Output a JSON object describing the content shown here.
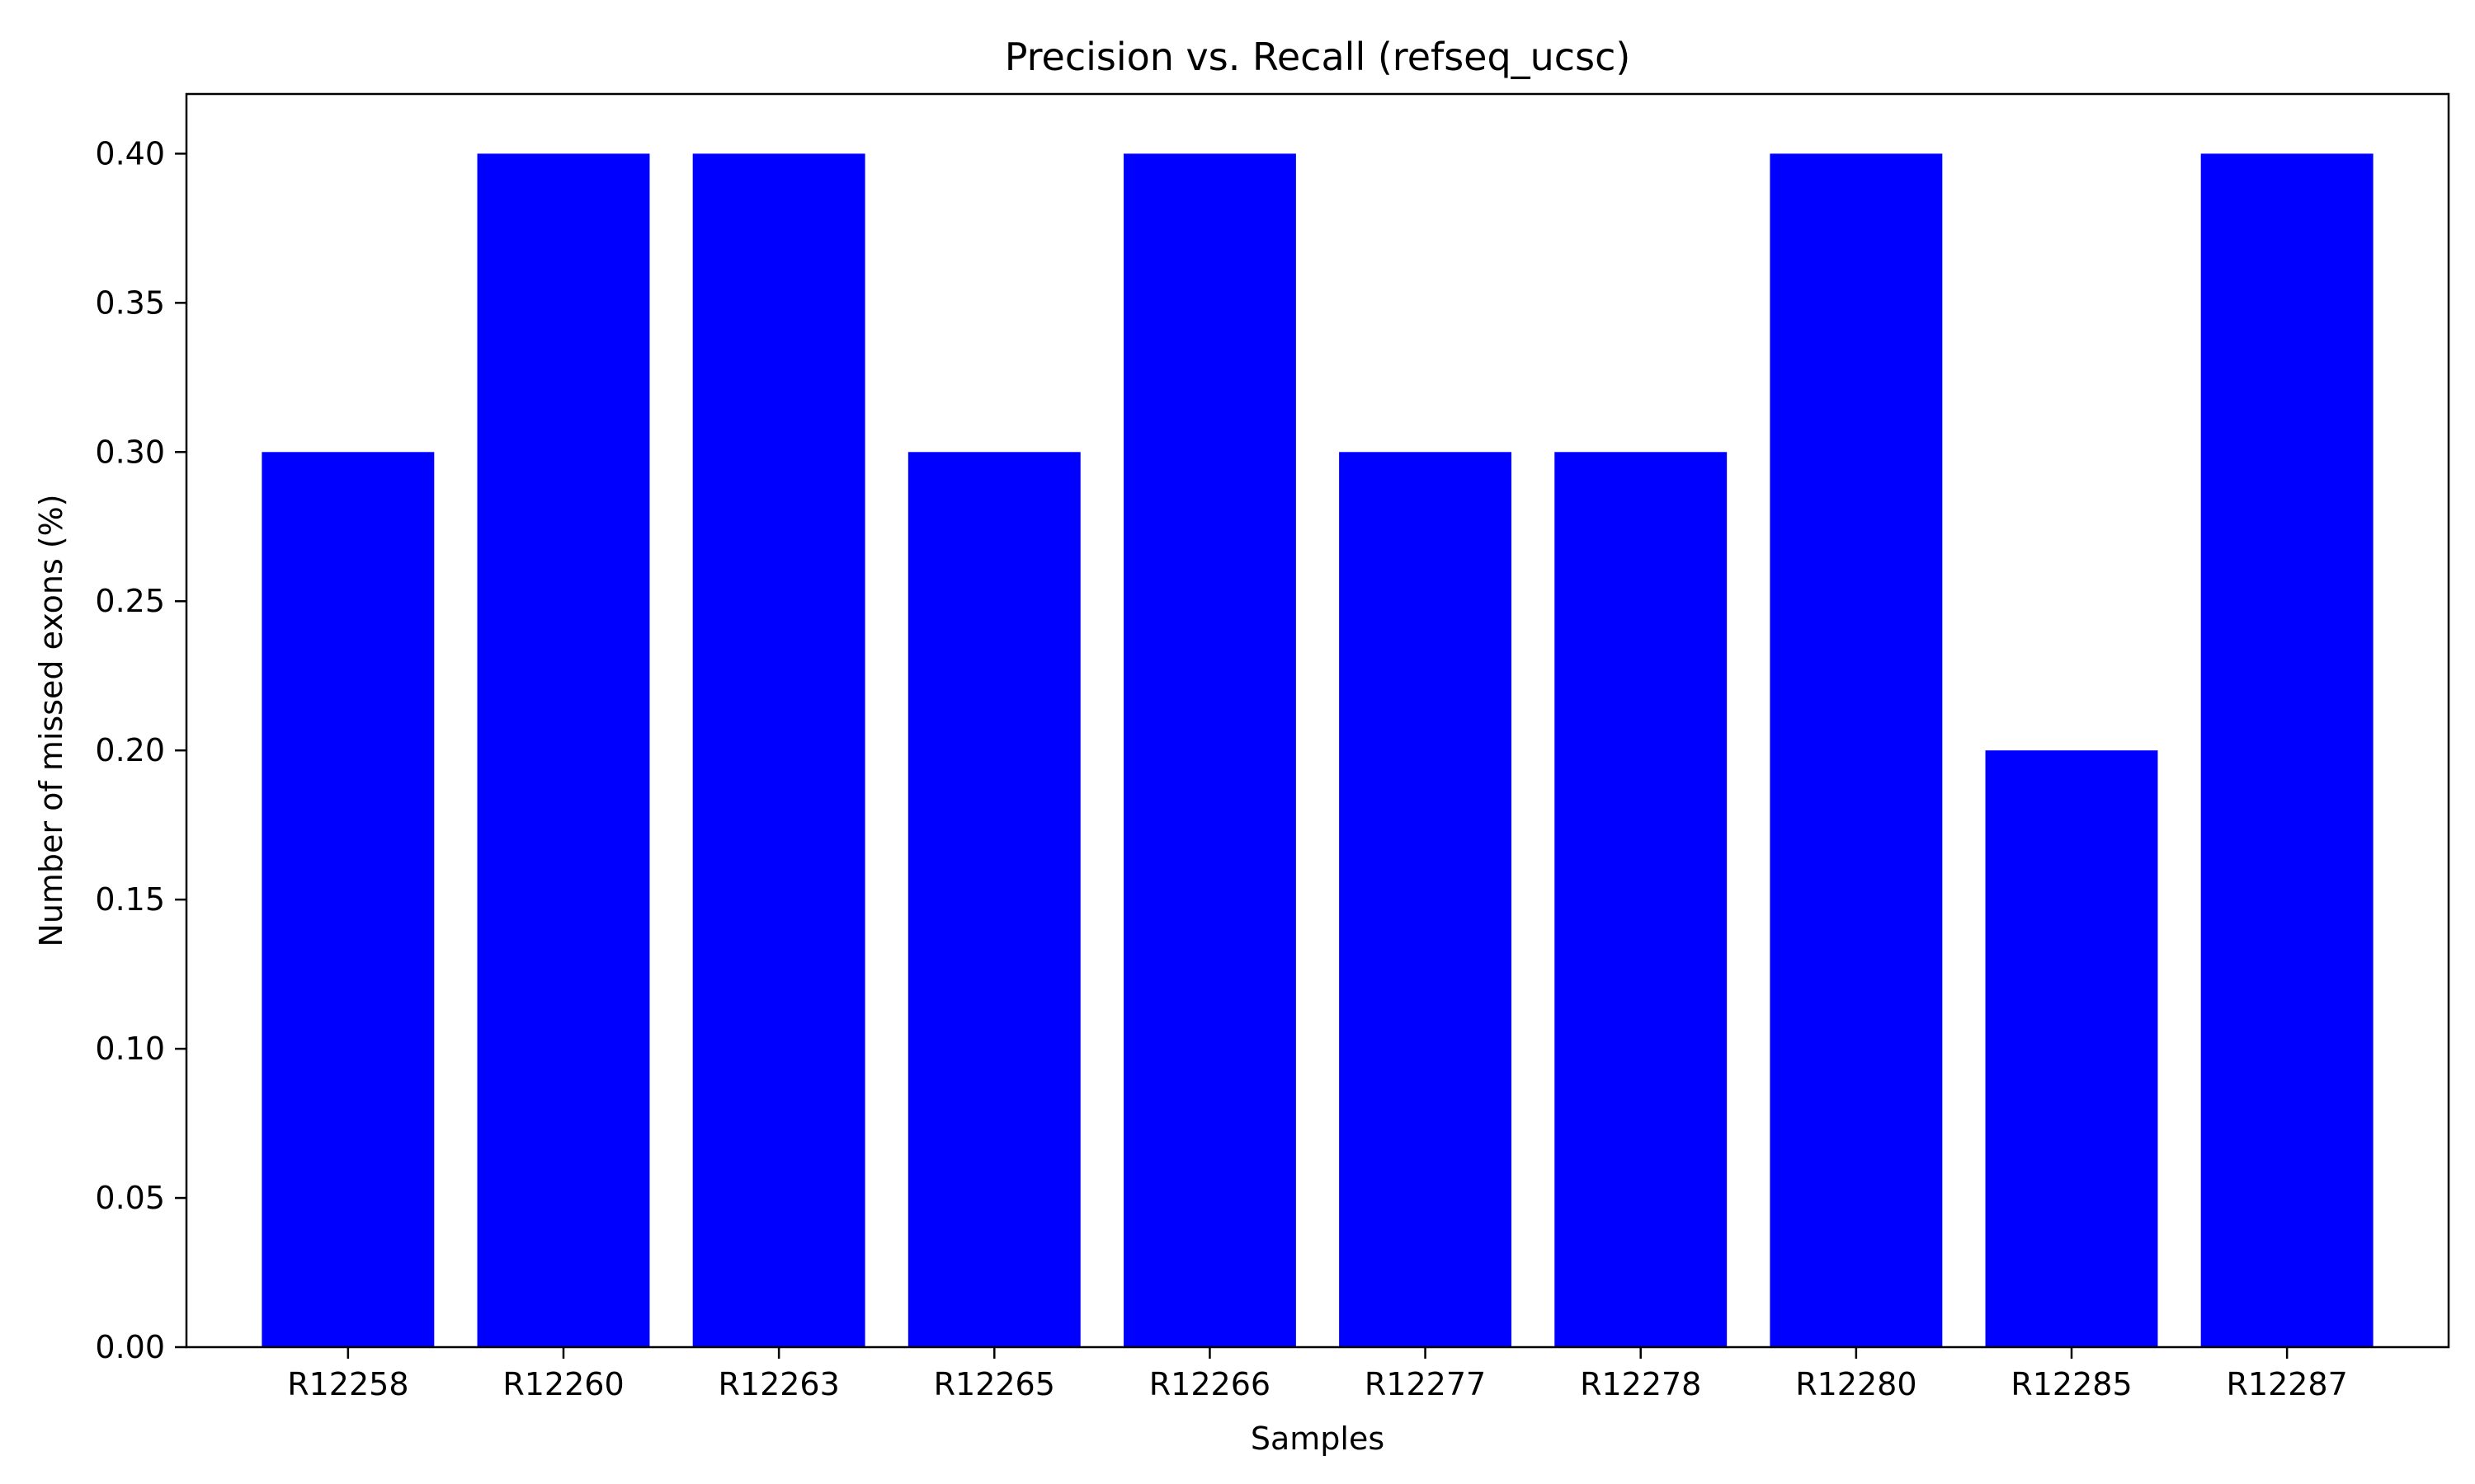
{
  "chart_data": {
    "type": "bar",
    "title": "Precision vs. Recall (refseq_ucsc)",
    "xlabel": "Samples",
    "ylabel": "Number of missed exons (%)",
    "categories": [
      "R12258",
      "R12260",
      "R12263",
      "R12265",
      "R12266",
      "R12277",
      "R12278",
      "R12280",
      "R12285",
      "R12287"
    ],
    "values": [
      0.3,
      0.4,
      0.4,
      0.3,
      0.4,
      0.3,
      0.3,
      0.4,
      0.2,
      0.4
    ],
    "ylim": [
      0,
      0.42
    ],
    "yticks": [
      "0.00",
      "0.05",
      "0.10",
      "0.15",
      "0.20",
      "0.25",
      "0.30",
      "0.35",
      "0.40"
    ],
    "grid": false,
    "bar_color": "#0000ff"
  }
}
